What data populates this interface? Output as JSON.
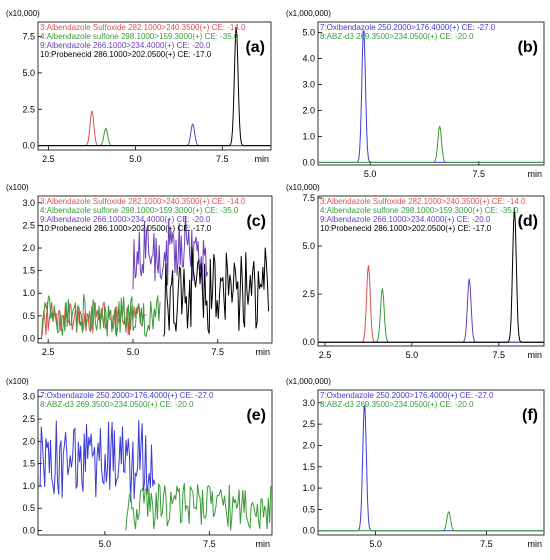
{
  "colors": {
    "red": "#d9534f",
    "green": "#3a9a3a",
    "purple": "#6a3fb8",
    "black": "#000000",
    "blue": "#3b3bd6",
    "olive": "#7a7a2a"
  },
  "chart_data": [
    {
      "type": "line",
      "panel_label": "(a)",
      "multiplier": "(x10,000)",
      "xunit": "min",
      "xlim": [
        2.2,
        8.9
      ],
      "ylim": [
        -0.3,
        8.5
      ],
      "xticks": [
        "2.5",
        "5.0",
        "7.5"
      ],
      "yticks": [
        "0.0",
        "2.5",
        "5.0",
        "7.5"
      ],
      "legend": [
        {
          "text": "3:Albendazole Sulfoxide 282.1000>240.3500(+) CE: -14.0",
          "color": "#d9534f"
        },
        {
          "text": "4:Albendazole sulfone 298.1000>159.3000(+) CE: -35.0",
          "color": "#3a9a3a"
        },
        {
          "text": "9:Albendazole 266.1000>234.4000(+) CE: -20.0",
          "color": "#6a3fb8"
        },
        {
          "text": "10:Probenecid 286.1000>202.0500(+) CE: -17.0",
          "color": "#000000"
        }
      ],
      "series": [
        {
          "peak_time": 3.75,
          "peak_height": 2.4,
          "color": "#d9534f"
        },
        {
          "peak_time": 4.15,
          "peak_height": 1.2,
          "color": "#3a9a3a"
        },
        {
          "peak_time": 6.65,
          "peak_height": 1.5,
          "color": "#6a3fb8"
        },
        {
          "peak_time": 7.9,
          "peak_height": 8.2,
          "color": "#000000"
        }
      ]
    },
    {
      "type": "line",
      "panel_label": "(b)",
      "multiplier": "(x1,000,000)",
      "xunit": "min",
      "xlim": [
        3.8,
        9.0
      ],
      "ylim": [
        -0.1,
        5.4
      ],
      "xticks": [
        "5.0",
        "7.5"
      ],
      "yticks": [
        "0.0",
        "1.0",
        "2.0",
        "3.0",
        "4.0",
        "5.0"
      ],
      "legend": [
        {
          "text": "7:Oxibendazole 250.2000>176.4000(+) CE: -27.0",
          "color": "#3b3bd6"
        },
        {
          "text": "8:ABZ-d3 269.3500>234.0500(+) CE: -20.0",
          "color": "#3a9a3a"
        }
      ],
      "series": [
        {
          "peak_time": 4.85,
          "peak_height": 5.2,
          "color": "#3b3bd6"
        },
        {
          "peak_time": 6.6,
          "peak_height": 1.4,
          "color": "#3a9a3a"
        }
      ]
    },
    {
      "type": "line",
      "panel_label": "(c)",
      "multiplier": "(x100)",
      "xunit": "min",
      "xlim": [
        2.2,
        9.1
      ],
      "ylim": [
        -0.1,
        3.15
      ],
      "xticks": [
        "2.5",
        "5.0",
        "7.5"
      ],
      "yticks": [
        "0.0",
        "0.5",
        "1.0",
        "1.5",
        "2.0",
        "2.5",
        "3.0"
      ],
      "legend": [
        {
          "text": "3:Albendazole Sulfoxide 282.1000>240.3500(+) CE: -14.0",
          "color": "#d9534f"
        },
        {
          "text": "4:Albendazole sulfone 298.1000>159.3000(+) CE: -35.0",
          "color": "#3a9a3a"
        },
        {
          "text": "9:Albendazole 266.1000>234.4000(+) CE: -20.0",
          "color": "#6a3fb8"
        },
        {
          "text": "10:Probenecid 286.1000>202.0500(+) CE: -17.0",
          "color": "#000000"
        }
      ],
      "series": [
        {
          "noise_range": [
            2.3,
            5.4
          ],
          "baseline": 0.45,
          "amplitude": 0.45,
          "color": "#d9534f"
        },
        {
          "noise_range": [
            2.3,
            5.8
          ],
          "baseline": 0.5,
          "amplitude": 0.55,
          "color": "#3a9a3a"
        },
        {
          "noise_range": [
            5.0,
            7.2
          ],
          "baseline": 1.9,
          "amplitude": 0.9,
          "color": "#6a3fb8"
        },
        {
          "noise_range": [
            5.9,
            9.0
          ],
          "baseline": 1.0,
          "amplitude": 1.1,
          "color": "#000000"
        }
      ]
    },
    {
      "type": "line",
      "panel_label": "(d)",
      "multiplier": "(x10,000)",
      "xunit": "min",
      "xlim": [
        2.3,
        8.8
      ],
      "ylim": [
        -0.2,
        7.6
      ],
      "xticks": [
        "2.5",
        "5.0",
        "7.5"
      ],
      "yticks": [
        "0.0",
        "2.5",
        "5.0",
        "7.5"
      ],
      "legend": [
        {
          "text": "3:Albendazole Sulfoxide 282.1000>240.3500(+) CE: -14.0",
          "color": "#d9534f"
        },
        {
          "text": "4:Albendazole sulfone 298.1000>159.3000(+) CE: -35.0",
          "color": "#3a9a3a"
        },
        {
          "text": "9:Albendazole 266.1000>234.4000(+) CE: -20.0",
          "color": "#6a3fb8"
        },
        {
          "text": "10:Probenecid 286.1000>202.0500(+) CE: -17.0",
          "color": "#000000"
        }
      ],
      "series": [
        {
          "peak_time": 3.75,
          "peak_height": 4.0,
          "color": "#d9534f"
        },
        {
          "peak_time": 4.15,
          "peak_height": 2.8,
          "color": "#3a9a3a"
        },
        {
          "peak_time": 6.65,
          "peak_height": 3.3,
          "color": "#6a3fb8"
        },
        {
          "peak_time": 7.95,
          "peak_height": 7.0,
          "color": "#000000"
        }
      ]
    },
    {
      "type": "line",
      "panel_label": "(e)",
      "multiplier": "(x100)",
      "xunit": "min",
      "xlim": [
        3.4,
        9.0
      ],
      "ylim": [
        -0.1,
        3.15
      ],
      "xticks": [
        "5.0",
        "7.5"
      ],
      "yticks": [
        "0.0",
        "0.5",
        "1.0",
        "1.5",
        "2.0",
        "2.5",
        "3.0"
      ],
      "legend": [
        {
          "text": "7:Oxbendazole 250.2000>176.4000(+) CE: -27.0",
          "color": "#3b3bd6"
        },
        {
          "text": "8:ABZ-d3 269.3500>234.0500(+) CE: -20.0",
          "color": "#3a9a3a"
        }
      ],
      "series": [
        {
          "noise_range": [
            3.45,
            6.2
          ],
          "baseline": 1.6,
          "amplitude": 1.0,
          "color": "#3b3bd6"
        },
        {
          "noise_range": [
            5.5,
            9.0
          ],
          "baseline": 0.55,
          "amplitude": 0.6,
          "color": "#3a9a3a"
        }
      ]
    },
    {
      "type": "line",
      "panel_label": "(f)",
      "multiplier": "(x1,000,000)",
      "xunit": "min",
      "xlim": [
        3.7,
        8.8
      ],
      "ylim": [
        -0.1,
        3.3
      ],
      "xticks": [
        "5.0",
        "7.5"
      ],
      "yticks": [
        "0.0",
        "0.5",
        "1.0",
        "1.5",
        "2.0",
        "2.5",
        "3.0"
      ],
      "legend": [
        {
          "text": "7:Oxbendazole 250.2000>176.4000(+) CE: -27.0",
          "color": "#3b3bd6"
        },
        {
          "text": "8:ABZ-d3 269.3500>234.0500(+) CE: -20.0",
          "color": "#3a9a3a"
        }
      ],
      "series": [
        {
          "peak_time": 4.75,
          "peak_height": 3.0,
          "color": "#3b3bd6"
        },
        {
          "peak_time": 6.65,
          "peak_height": 0.45,
          "color": "#3a9a3a"
        }
      ]
    }
  ]
}
